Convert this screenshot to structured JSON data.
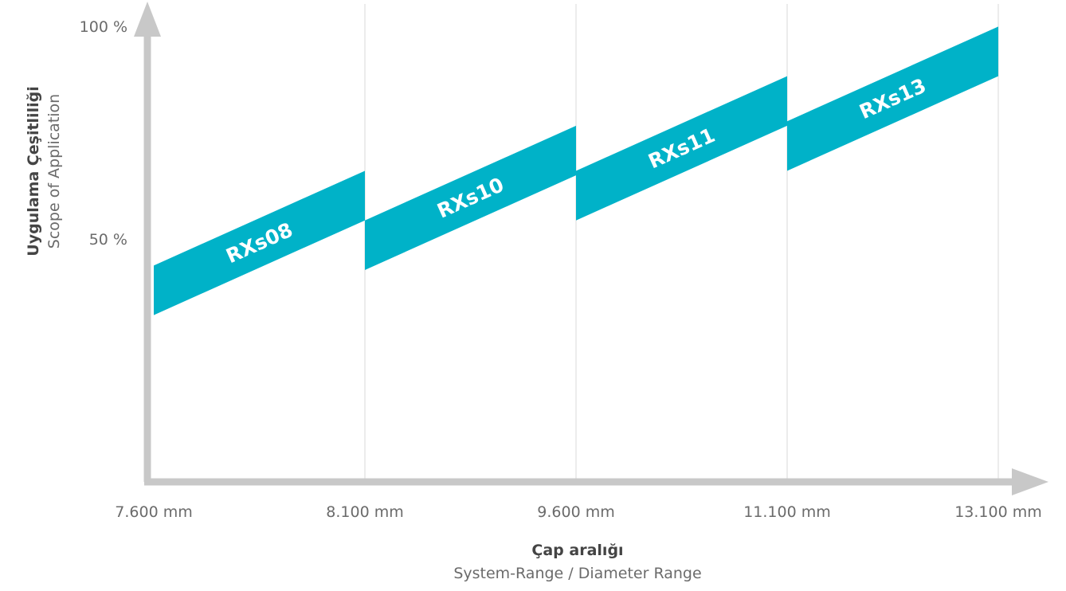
{
  "chart_data": {
    "type": "area",
    "x_ticks": [
      "7.600 mm",
      "8.100 mm",
      "9.600 mm",
      "11.100 mm",
      "13.100 mm"
    ],
    "y_ticks": [
      "100 %",
      "50 %"
    ],
    "xlabel": "Çap aralığı",
    "xlabel_sub": "System-Range / Diameter Range",
    "ylabel": "Uygulama Çeşitliliği",
    "ylabel_sub": "Scope of Application",
    "grid": "vertical",
    "series": [
      {
        "name": "RXs08",
        "x_range": [
          "7.600 mm",
          "8.100 mm"
        ],
        "start_pct": [
          37,
          48
        ],
        "end_pct": [
          58,
          69
        ]
      },
      {
        "name": "RXs10",
        "x_range": [
          "8.100 mm",
          "9.600 mm"
        ],
        "start_pct": [
          47,
          58
        ],
        "end_pct": [
          68,
          79
        ]
      },
      {
        "name": "RXs11",
        "x_range": [
          "9.600 mm",
          "11.100 mm"
        ],
        "start_pct": [
          58,
          69
        ],
        "end_pct": [
          79,
          90
        ]
      },
      {
        "name": "RXs13",
        "x_range": [
          "11.100 mm",
          "13.100 mm"
        ],
        "start_pct": [
          69,
          80
        ],
        "end_pct": [
          90,
          101
        ]
      }
    ],
    "colors": {
      "band": "#00b2c8",
      "axis": "#c8c8c8",
      "grid": "#d9d9d9",
      "label": "#ffffff"
    }
  }
}
